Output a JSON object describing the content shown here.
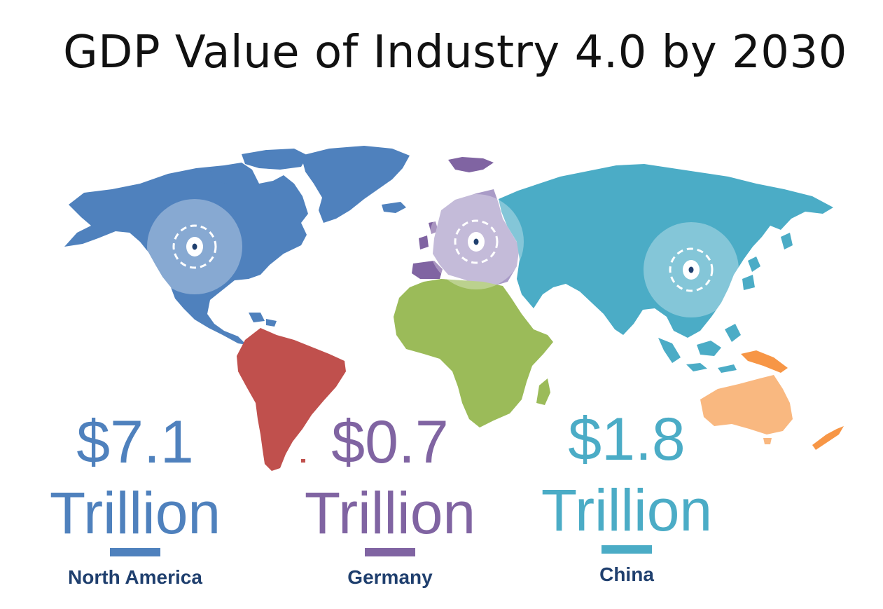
{
  "title": "GDP Value of Industry 4.0 by 2030",
  "colors": {
    "north_america": "#4f81bd",
    "south_america": "#c0504d",
    "europe": "#8064a2",
    "africa": "#9bbb59",
    "asia": "#4bacc6",
    "oceania": "#f9b880",
    "oceania_islands": "#f79646",
    "region_label": "#1f3f6e"
  },
  "stats": [
    {
      "amount": "$7.1",
      "unit": "Trillion",
      "region": "North America",
      "value_trillion_usd": 7.1
    },
    {
      "amount": "$0.7",
      "unit": "Trillion",
      "region": "Germany",
      "value_trillion_usd": 0.7
    },
    {
      "amount": "$1.8",
      "unit": "Trillion",
      "region": "China",
      "value_trillion_usd": 1.8
    }
  ],
  "markers": [
    {
      "name": "North America",
      "icon": "target-marker-icon"
    },
    {
      "name": "Germany",
      "icon": "target-marker-icon"
    },
    {
      "name": "China",
      "icon": "target-marker-icon"
    }
  ]
}
